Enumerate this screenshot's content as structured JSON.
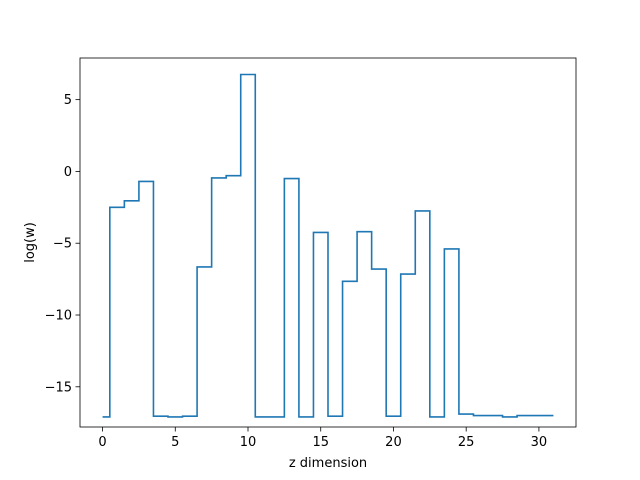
{
  "chart_data": {
    "type": "line",
    "step": "mid",
    "title": "",
    "xlabel": "z dimension",
    "ylabel": "log(w)",
    "xlim": [
      -1.55,
      32.55
    ],
    "ylim": [
      -17.8,
      7.9
    ],
    "xticks": [
      0,
      5,
      10,
      15,
      20,
      25,
      30
    ],
    "xtick_labels": [
      "0",
      "5",
      "10",
      "15",
      "20",
      "25",
      "30"
    ],
    "yticks": [
      5,
      0,
      -5,
      -10,
      -15
    ],
    "ytick_labels": [
      "5",
      "0",
      "−5",
      "−10",
      "−15"
    ],
    "grid": false,
    "color": "#1f77b4",
    "series": [
      {
        "x": [
          0,
          1,
          2,
          3,
          4,
          5,
          6,
          7,
          8,
          9,
          10,
          11,
          12,
          13,
          14,
          15,
          16,
          17,
          18,
          19,
          20,
          21,
          22,
          23,
          24,
          25,
          26,
          27,
          28,
          29,
          30,
          31
        ],
        "values": [
          -17.1,
          -2.5,
          -2.05,
          -0.7,
          -17.05,
          -17.1,
          -17.05,
          -6.65,
          -0.45,
          -0.3,
          6.75,
          -17.1,
          -17.1,
          -0.5,
          -17.1,
          -4.25,
          -17.05,
          -7.65,
          -4.2,
          -6.8,
          -17.05,
          -7.15,
          -2.75,
          -17.1,
          -5.4,
          -16.9,
          -17.0,
          -17.0,
          -17.1,
          -17.0,
          -17.0,
          -17.0
        ]
      }
    ]
  }
}
